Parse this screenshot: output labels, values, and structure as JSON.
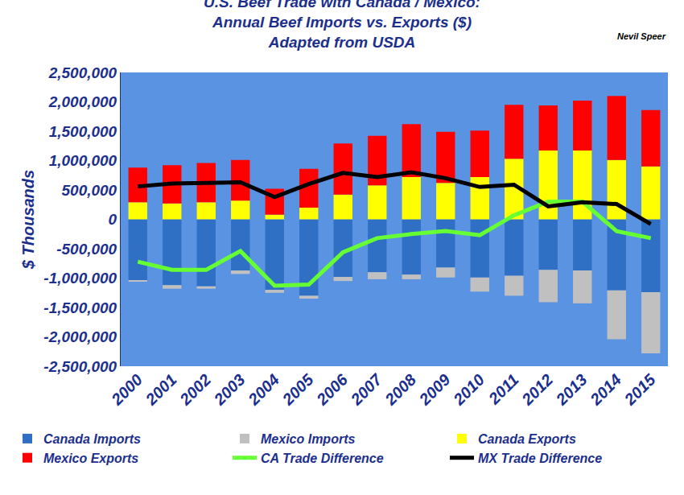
{
  "chart_data": {
    "type": "bar",
    "title": "U.S. Beef Trade with Canada / Mexico:\nAnnual Beef Imports vs. Exports ($)\nAdapted from USDA",
    "annotations": [
      "Nevil Speer"
    ],
    "y_label": "$ Thousands",
    "categories": [
      "2000",
      "2001",
      "2002",
      "2003",
      "2004",
      "2005",
      "2006",
      "2007",
      "2008",
      "2009",
      "2010",
      "2011",
      "2012",
      "2013",
      "2014",
      "2015"
    ],
    "series": [
      {
        "name": "Canada Imports",
        "type": "bar",
        "color": "#2f6fc4",
        "values": [
          -1040000,
          -1120000,
          -1140000,
          -870000,
          -1200000,
          -1300000,
          -980000,
          -900000,
          -940000,
          -820000,
          -990000,
          -960000,
          -860000,
          -870000,
          -1210000,
          -1240000
        ]
      },
      {
        "name": "Mexico Imports",
        "type": "bar",
        "color": "#c0c0c0",
        "values": [
          -10000,
          -60000,
          -40000,
          -60000,
          -50000,
          -50000,
          -70000,
          -120000,
          -80000,
          -170000,
          -240000,
          -340000,
          -550000,
          -560000,
          -830000,
          -1040000
        ]
      },
      {
        "name": "Canada Exports",
        "type": "bar",
        "color": "#ffff00",
        "values": [
          290000,
          270000,
          290000,
          320000,
          80000,
          200000,
          420000,
          580000,
          720000,
          620000,
          720000,
          1030000,
          1170000,
          1170000,
          1010000,
          900000
        ]
      },
      {
        "name": "Mexico Exports",
        "type": "bar",
        "color": "#ff0000",
        "values": [
          590000,
          650000,
          670000,
          690000,
          440000,
          660000,
          870000,
          840000,
          900000,
          870000,
          790000,
          920000,
          770000,
          850000,
          1090000,
          960000
        ]
      },
      {
        "name": "CA Trade Difference",
        "type": "line",
        "color": "#66ff33",
        "values": [
          -720000,
          -860000,
          -860000,
          -540000,
          -1130000,
          -1110000,
          -560000,
          -320000,
          -250000,
          -200000,
          -270000,
          70000,
          300000,
          300000,
          -200000,
          -320000
        ]
      },
      {
        "name": "MX Trade Difference",
        "type": "line",
        "color": "#000000",
        "values": [
          560000,
          610000,
          620000,
          630000,
          380000,
          600000,
          790000,
          720000,
          800000,
          700000,
          550000,
          590000,
          220000,
          290000,
          260000,
          -80000
        ]
      }
    ],
    "ylim": [
      -2500000,
      2500000
    ],
    "yticks": [
      {
        "value": -2500000,
        "label": "-2,500,000"
      },
      {
        "value": -2000000,
        "label": "-2,000,000"
      },
      {
        "value": -1500000,
        "label": "-1,500,000"
      },
      {
        "value": -1000000,
        "label": "-1,000,000"
      },
      {
        "value": -500000,
        "label": "-500,000"
      },
      0,
      {
        "value": 500000,
        "label": "500,000"
      },
      {
        "value": 1000000,
        "label": "1,000,000"
      },
      {
        "value": 1500000,
        "label": "1,500,000"
      },
      {
        "value": 2000000,
        "label": "2,000,000"
      },
      {
        "value": 2500000,
        "label": "2,500,000"
      }
    ],
    "stacked": true,
    "grid": false,
    "legend": "bottom"
  }
}
